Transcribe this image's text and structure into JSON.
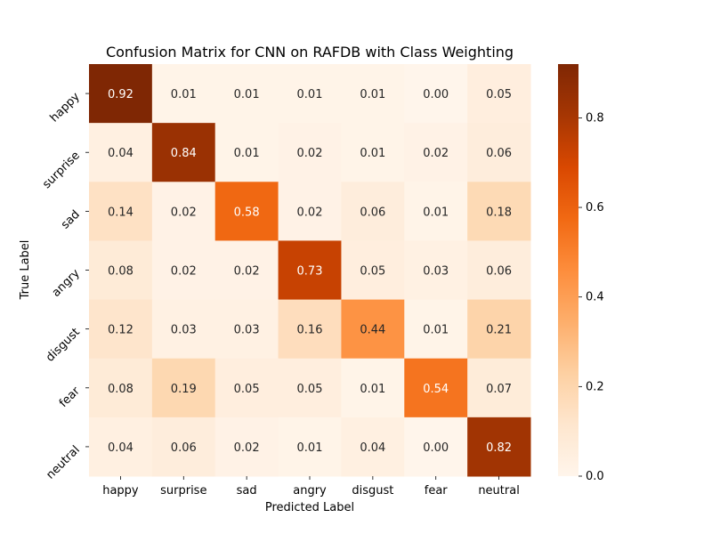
{
  "chart_data": {
    "type": "heatmap",
    "title": "Confusion Matrix for CNN on RAFDB with Class Weighting",
    "xlabel": "Predicted Label",
    "ylabel": "True Label",
    "x_categories": [
      "happy",
      "surprise",
      "sad",
      "angry",
      "disgust",
      "fear",
      "neutral"
    ],
    "y_categories": [
      "happy",
      "surprise",
      "sad",
      "angry",
      "disgust",
      "fear",
      "neutral"
    ],
    "values": [
      [
        0.92,
        0.01,
        0.01,
        0.01,
        0.01,
        0.0,
        0.05
      ],
      [
        0.04,
        0.84,
        0.01,
        0.02,
        0.01,
        0.02,
        0.06
      ],
      [
        0.14,
        0.02,
        0.58,
        0.02,
        0.06,
        0.01,
        0.18
      ],
      [
        0.08,
        0.02,
        0.02,
        0.73,
        0.05,
        0.03,
        0.06
      ],
      [
        0.12,
        0.03,
        0.03,
        0.16,
        0.44,
        0.01,
        0.21
      ],
      [
        0.08,
        0.19,
        0.05,
        0.05,
        0.01,
        0.54,
        0.07
      ],
      [
        0.04,
        0.06,
        0.02,
        0.01,
        0.04,
        0.0,
        0.82
      ]
    ],
    "colormap": "Oranges",
    "colorbar": {
      "min": 0.0,
      "max": 0.92,
      "ticks": [
        0.0,
        0.2,
        0.4,
        0.6,
        0.8
      ],
      "tick_labels": [
        "0.0",
        "0.2",
        "0.4",
        "0.6",
        "0.8"
      ]
    },
    "colors": {
      "light_text": "#ffffff",
      "dark_text": "#262626"
    }
  }
}
